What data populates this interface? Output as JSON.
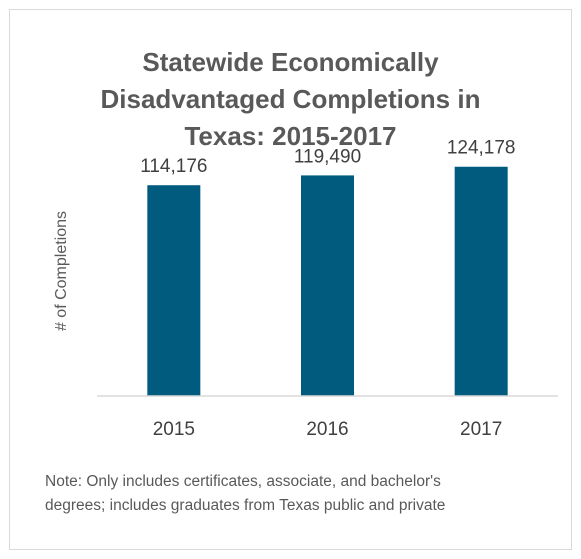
{
  "chart_data": {
    "type": "bar",
    "title_lines": [
      "Statewide Economically",
      "Disadvantaged Completions in",
      "Texas: 2015-2017"
    ],
    "xlabel": "",
    "ylabel": "# of Completions",
    "categories": [
      "2015",
      "2016",
      "2017"
    ],
    "values": [
      114176,
      119490,
      124178
    ],
    "data_labels": [
      "114,176",
      "119,490",
      "124,178"
    ],
    "ylim": [
      0,
      130000
    ],
    "grid": false,
    "legend": "none",
    "bar_color": "#005b7f"
  },
  "note_lines": [
    "Note: Only includes certificates, associate, and bachelor's",
    "degrees; includes  graduates from Texas public and private"
  ]
}
